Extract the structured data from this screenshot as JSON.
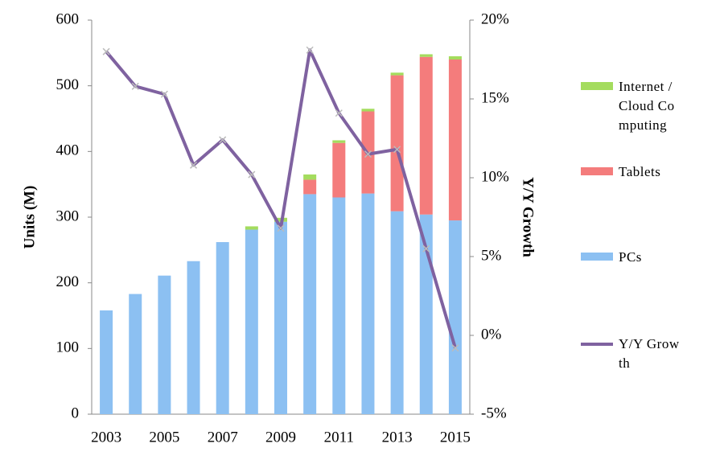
{
  "chart_data": {
    "type": "bar",
    "categories": [
      2003,
      null,
      2005,
      null,
      2007,
      null,
      2009,
      null,
      2011,
      null,
      2013,
      null,
      2015
    ],
    "ylabel": "Units (M)",
    "y2label": "Y/Y Growth",
    "ylim": [
      0,
      600
    ],
    "yticks": [
      0,
      100,
      200,
      300,
      400,
      500,
      600
    ],
    "y2lim": [
      -5,
      20
    ],
    "y2ticks": [
      {
        "value": -5,
        "label": "-5%"
      },
      {
        "value": 0,
        "label": "0%"
      },
      {
        "value": 5,
        "label": "5%"
      },
      {
        "value": 10,
        "label": "10%"
      },
      {
        "value": 15,
        "label": "15%"
      },
      {
        "value": 20,
        "label": "20%"
      }
    ],
    "stacked": true,
    "series": [
      {
        "name": "PCs",
        "color": "#8cc0f2",
        "values": [
          158,
          183,
          211,
          233,
          262,
          281,
          293,
          335,
          330,
          336,
          309,
          304,
          295
        ]
      },
      {
        "name": "Tablets",
        "color": "#f47c7c",
        "values": [
          0,
          0,
          0,
          0,
          0,
          0,
          0,
          22,
          83,
          125,
          207,
          240,
          245
        ]
      },
      {
        "name": "Internet /Cloud Computing",
        "color": "#a4dc5e",
        "values": [
          0,
          0,
          0,
          0,
          0,
          5,
          6,
          8,
          4,
          4,
          4,
          4,
          5
        ]
      },
      {
        "name": "Y/Y Growth",
        "color": "#7f62a0",
        "type": "line",
        "axis": "y2",
        "values": [
          18,
          15.8,
          15.3,
          10.8,
          12.4,
          10.2,
          6.8,
          18.1,
          14.1,
          11.5,
          11.8,
          5.5,
          -0.8
        ]
      }
    ]
  }
}
